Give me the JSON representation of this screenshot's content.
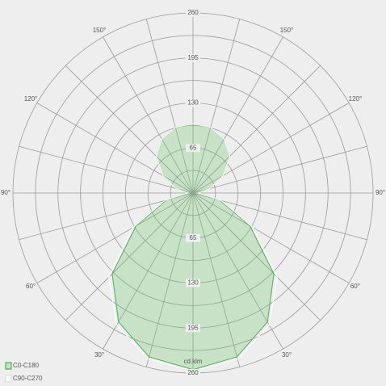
{
  "chart_data": {
    "type": "polar",
    "unit_label": "cd.klm",
    "rlim": [
      0,
      260
    ],
    "rticks": [
      65,
      130,
      195,
      260
    ],
    "rgrid": [
      32.5,
      65,
      97.5,
      130,
      162.5,
      195,
      227.5,
      260
    ],
    "agrid": [
      0,
      15,
      30,
      45,
      60,
      75,
      90,
      105,
      120,
      135,
      150,
      165
    ],
    "aticks": [
      {
        "value": 30,
        "label": "30°"
      },
      {
        "value": 60,
        "label": "60°"
      },
      {
        "value": 90,
        "label": "90°"
      },
      {
        "value": 120,
        "label": "120°"
      },
      {
        "value": 150,
        "label": "150°"
      }
    ],
    "angles": [
      -180,
      -165,
      -150,
      -135,
      -120,
      -105,
      -90,
      -75,
      -60,
      -45,
      -30,
      -15,
      0,
      15,
      30,
      45,
      60,
      75,
      90,
      105,
      120,
      135,
      150,
      165,
      180
    ],
    "series": [
      {
        "name": "C0-C180",
        "color": "#4caf50",
        "fill": "rgba(110,200,110,0.3)",
        "values": [
          100,
          98,
          90,
          75,
          50,
          25,
          8,
          40,
          95,
          165,
          215,
          245,
          255,
          245,
          215,
          165,
          95,
          40,
          8,
          25,
          50,
          75,
          90,
          98,
          100
        ]
      },
      {
        "name": "C90-C270",
        "color": "#ffffff",
        "fill": "none",
        "values": [
          100,
          98,
          90,
          75,
          50,
          25,
          8,
          42,
          100,
          172,
          220,
          248,
          257,
          248,
          220,
          172,
          100,
          42,
          8,
          25,
          50,
          75,
          90,
          98,
          100
        ]
      }
    ]
  }
}
